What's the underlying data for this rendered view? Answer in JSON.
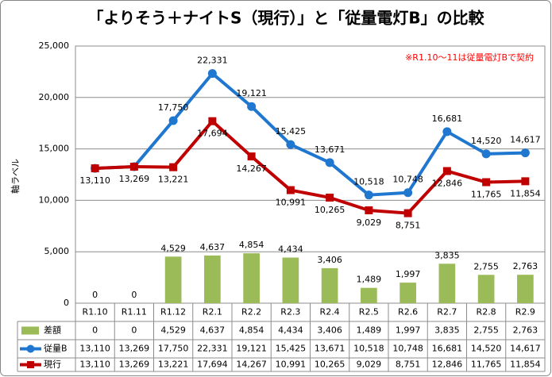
{
  "chart_data": {
    "type": "combo",
    "title": "「よりそう＋ナイトS（現行）」と「従量電灯B」の比較",
    "annotation": "※R1.10～11は従量電灯Bで契約",
    "ylabel": "軸ラベル",
    "categories": [
      "R1.10",
      "R1.11",
      "R1.12",
      "R2.1",
      "R2.2",
      "R2.3",
      "R2.4",
      "R2.5",
      "R2.6",
      "R2.7",
      "R2.8",
      "R2.9"
    ],
    "ylim": [
      0,
      25000
    ],
    "yticks": [
      0,
      {
        "value": 5000,
        "label": "5,000"
      },
      {
        "value": 10000,
        "label": "10,000"
      },
      {
        "value": 15000,
        "label": "15,000"
      },
      {
        "value": 20000,
        "label": "20,000"
      },
      {
        "value": 25000,
        "label": "25,000"
      }
    ],
    "grid": true,
    "series": [
      {
        "name": "差額",
        "type": "bar",
        "color": "#9bbb59",
        "values": [
          0,
          0,
          4529,
          4637,
          4854,
          4434,
          3406,
          1489,
          1997,
          3835,
          2755,
          2763
        ],
        "value_labels": [
          "0",
          "0",
          "4,529",
          "4,637",
          "4,854",
          "4,434",
          "3,406",
          "1,489",
          "1,997",
          "3,835",
          "2,755",
          "2,763"
        ]
      },
      {
        "name": "従量B",
        "type": "line",
        "marker": "circle",
        "color": "#1f77d0",
        "values": [
          13110,
          13269,
          17750,
          22331,
          19121,
          15425,
          13671,
          10518,
          10748,
          16681,
          14520,
          14617
        ],
        "value_labels": [
          "13,110",
          "13,269",
          "17,750",
          "22,331",
          "19,121",
          "15,425",
          "13,671",
          "10,518",
          "10,748",
          "16,681",
          "14,520",
          "14,617"
        ]
      },
      {
        "name": "現行",
        "type": "line",
        "marker": "square",
        "color": "#c00000",
        "values": [
          13110,
          13269,
          13221,
          17694,
          14267,
          10991,
          10265,
          9029,
          8751,
          12846,
          11765,
          11854
        ],
        "value_labels": [
          "13,110",
          "13,269",
          "13,221",
          "17,694",
          "14,267",
          "10,991",
          "10,265",
          "9,029",
          "8,751",
          "12,846",
          "11,765",
          "11,854"
        ]
      }
    ]
  }
}
